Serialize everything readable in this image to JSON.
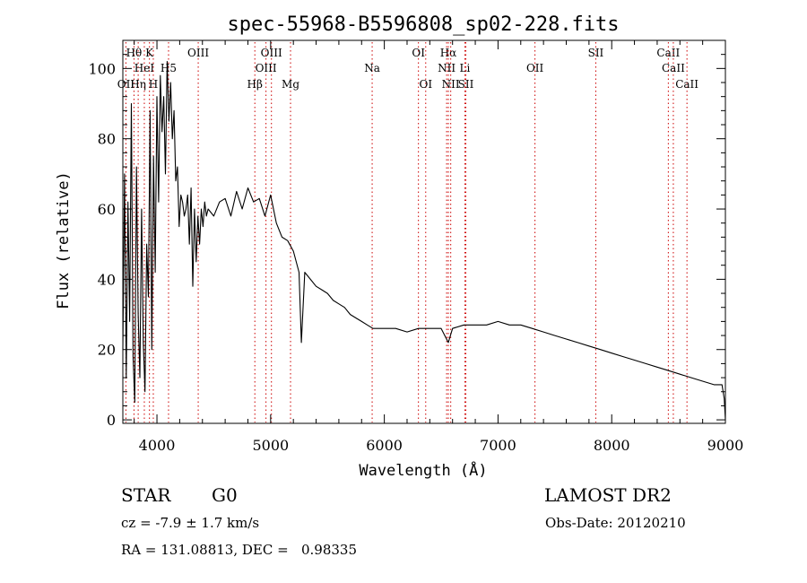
{
  "chart_data": {
    "type": "line",
    "title": "spec-55968-B5596808_sp02-228.fits",
    "xlabel": "Wavelength (Å)",
    "ylabel": "Flux (relative)",
    "xlim": [
      3700,
      9000
    ],
    "ylim": [
      -1,
      108
    ],
    "x_ticks": [
      4000,
      5000,
      6000,
      7000,
      8000,
      9000
    ],
    "y_ticks": [
      0,
      20,
      40,
      60,
      80,
      100
    ],
    "grid": false,
    "line_color": "#000000",
    "marker_line_color": "#cc0000",
    "series": [
      {
        "x": [
          3700,
          3715,
          3730,
          3745,
          3760,
          3775,
          3790,
          3805,
          3820,
          3835,
          3850,
          3865,
          3880,
          3895,
          3910,
          3925,
          3940,
          3955,
          3970,
          3985,
          4000,
          4015,
          4030,
          4045,
          4060,
          4075,
          4090,
          4105,
          4120,
          4135,
          4150,
          4165,
          4180,
          4195,
          4210,
          4225,
          4240,
          4255,
          4270,
          4285,
          4300,
          4315,
          4330,
          4345,
          4360,
          4375,
          4390,
          4405,
          4420,
          4435,
          4450,
          4500,
          4550,
          4600,
          4650,
          4700,
          4750,
          4800,
          4850,
          4900,
          4950,
          5000,
          5050,
          5100,
          5150,
          5200,
          5250,
          5270,
          5300,
          5350,
          5400,
          5450,
          5500,
          5550,
          5600,
          5650,
          5700,
          5750,
          5800,
          5850,
          5900,
          6000,
          6100,
          6200,
          6300,
          6400,
          6500,
          6563,
          6600,
          6700,
          6800,
          6900,
          7000,
          7100,
          7200,
          7300,
          7400,
          7500,
          7600,
          7700,
          7800,
          7900,
          8000,
          8100,
          8200,
          8300,
          8400,
          8500,
          8600,
          8700,
          8800,
          8900,
          8970,
          8990,
          9000
        ],
        "y": [
          20,
          70,
          12,
          62,
          28,
          90,
          18,
          5,
          72,
          30,
          12,
          60,
          22,
          8,
          50,
          35,
          88,
          20,
          75,
          42,
          92,
          62,
          98,
          82,
          92,
          70,
          102,
          85,
          96,
          80,
          88,
          68,
          72,
          55,
          64,
          62,
          58,
          60,
          64,
          50,
          66,
          38,
          60,
          45,
          58,
          50,
          60,
          55,
          62,
          58,
          60,
          58,
          62,
          63,
          58,
          65,
          60,
          66,
          62,
          63,
          58,
          64,
          56,
          52,
          51,
          48,
          42,
          22,
          42,
          40,
          38,
          37,
          36,
          34,
          33,
          32,
          30,
          29,
          28,
          27,
          26,
          26,
          26,
          25,
          26,
          26,
          26,
          22,
          26,
          27,
          27,
          27,
          28,
          27,
          27,
          26,
          25,
          24,
          23,
          22,
          21,
          20,
          19,
          18,
          17,
          16,
          15,
          14,
          13,
          12,
          11,
          10,
          10,
          6,
          0
        ]
      }
    ],
    "line_markers": [
      {
        "label": "Hθ",
        "x": 3798,
        "row": 1
      },
      {
        "label": "K",
        "x": 3934,
        "row": 1
      },
      {
        "label": "OIII",
        "x": 4363,
        "row": 1
      },
      {
        "label": "OIII",
        "x": 5007,
        "row": 1
      },
      {
        "label": "OI",
        "x": 6300,
        "row": 1
      },
      {
        "label": "Hα",
        "x": 6563,
        "row": 1
      },
      {
        "label": "SII",
        "x": 7860,
        "row": 1
      },
      {
        "label": "CaII",
        "x": 8498,
        "row": 1
      },
      {
        "label": "HeI",
        "x": 3889,
        "row": 2
      },
      {
        "label": "H5",
        "x": 4102,
        "row": 2
      },
      {
        "label": "OIII",
        "x": 4959,
        "row": 2
      },
      {
        "label": "Na",
        "x": 5893,
        "row": 2
      },
      {
        "label": "NII",
        "x": 6548,
        "row": 2
      },
      {
        "label": "Li",
        "x": 6708,
        "row": 2
      },
      {
        "label": "OII",
        "x": 7325,
        "row": 2
      },
      {
        "label": "CaII",
        "x": 8542,
        "row": 2
      },
      {
        "label": "OII",
        "x": 3727,
        "row": 3
      },
      {
        "label": "Hη",
        "x": 3835,
        "row": 3
      },
      {
        "label": "H",
        "x": 3968,
        "row": 3
      },
      {
        "label": "Hβ",
        "x": 4861,
        "row": 3
      },
      {
        "label": "Mg",
        "x": 5175,
        "row": 3
      },
      {
        "label": "OI",
        "x": 6364,
        "row": 3
      },
      {
        "label": "NII",
        "x": 6584,
        "row": 3
      },
      {
        "label": "SII",
        "x": 6717,
        "row": 3
      },
      {
        "label": "CaII",
        "x": 8662,
        "row": 3
      }
    ]
  },
  "info": {
    "object_class": "STAR",
    "subclass": "G0",
    "survey": "LAMOST DR2",
    "redshift": "cz = -7.9 ± 1.7 km/s",
    "obs_date": "Obs-Date: 20120210",
    "coords": "RA = 131.08813, DEC =   0.98335"
  }
}
